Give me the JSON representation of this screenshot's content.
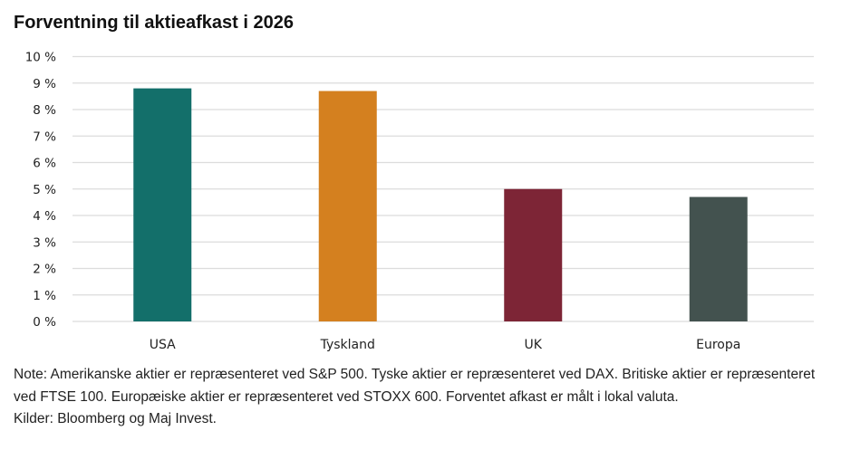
{
  "chart_data": {
    "type": "bar",
    "title": "Forventning til aktieafkast i 2026",
    "categories": [
      "USA",
      "Tyskland",
      "UK",
      "Europa"
    ],
    "values": [
      8.8,
      8.7,
      5.0,
      4.7
    ],
    "colors": [
      "#136f6a",
      "#d4801f",
      "#7d2536",
      "#43524f"
    ],
    "xlabel": "",
    "ylabel": "",
    "ylim": [
      0,
      10
    ],
    "yticks": [
      0,
      1,
      2,
      3,
      4,
      5,
      6,
      7,
      8,
      9,
      10
    ],
    "ytick_labels": [
      "0 %",
      "1 %",
      "2 %",
      "3 %",
      "4 %",
      "5 %",
      "6 %",
      "7 %",
      "8 %",
      "9 %",
      "10 %"
    ],
    "grid": true,
    "legend": "none"
  },
  "note": {
    "line1": "Note: Amerikanske aktier er repræsenteret ved S&P 500. Tyske aktier er repræsenteret ved DAX. Britiske aktier er repræsenteret ved FTSE 100. Europæiske aktier er repræsenteret ved STOXX 600. Forventet afkast er målt i lokal valuta.",
    "line2": "Kilder: Bloomberg og Maj Invest."
  }
}
